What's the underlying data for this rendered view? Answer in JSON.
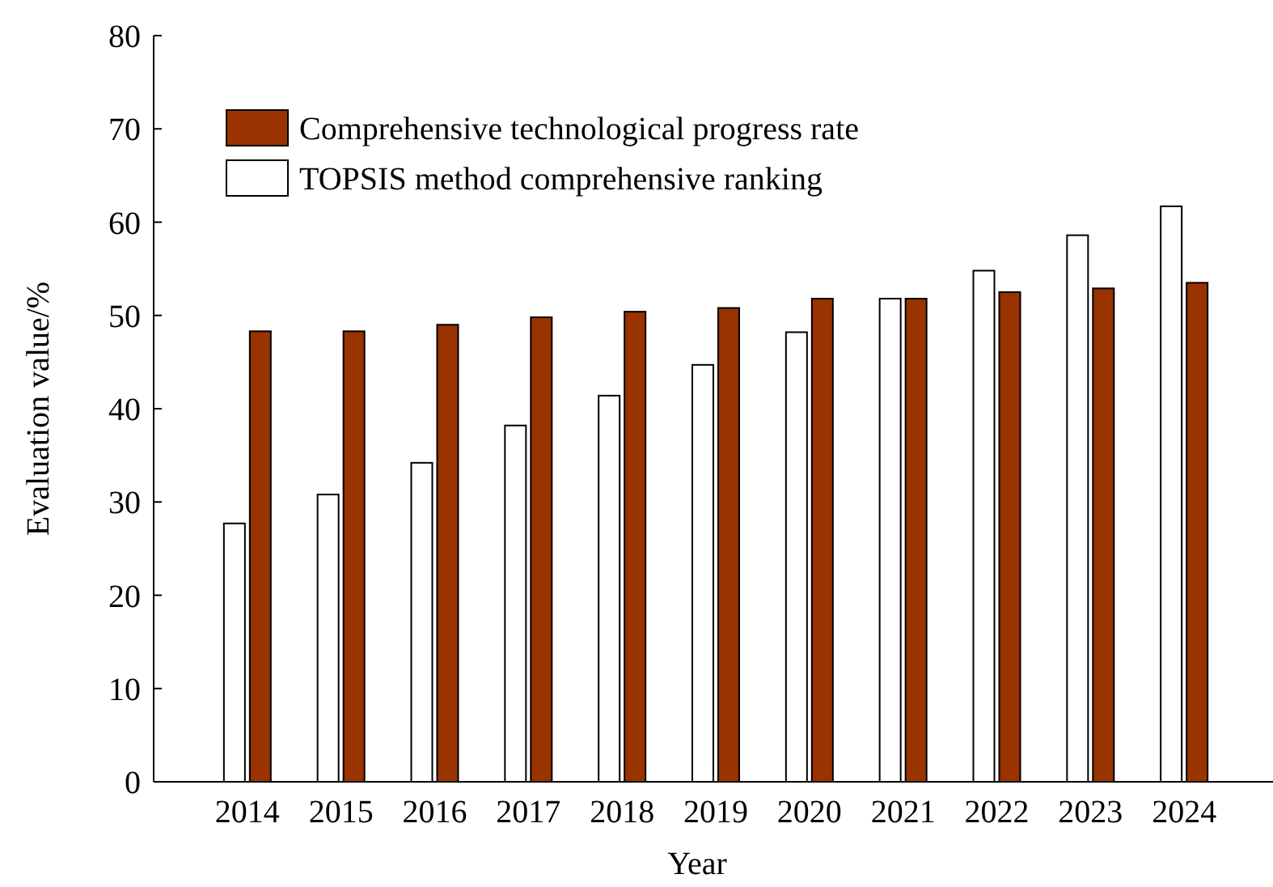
{
  "chart_data": {
    "type": "bar",
    "xlabel": "Year",
    "ylabel": "Evaluation value/%",
    "categories": [
      "2014",
      "2015",
      "2016",
      "2017",
      "2018",
      "2019",
      "2020",
      "2021",
      "2022",
      "2023",
      "2024"
    ],
    "series": [
      {
        "name": "TOPSIS method comprehensive ranking",
        "color": "#ffffff",
        "values": [
          27.7,
          30.8,
          34.2,
          38.2,
          41.4,
          44.7,
          48.2,
          51.8,
          54.8,
          58.6,
          61.7
        ]
      },
      {
        "name": "Comprehensive technological progress rate",
        "color": "#993300",
        "values": [
          48.3,
          48.3,
          49.0,
          49.8,
          50.4,
          50.8,
          51.8,
          51.8,
          52.5,
          52.9,
          53.5
        ]
      }
    ],
    "ylim": [
      0,
      80
    ],
    "yticks": [
      0,
      10,
      20,
      30,
      40,
      50,
      60,
      70,
      80
    ],
    "grid": false,
    "legend": "top left"
  }
}
